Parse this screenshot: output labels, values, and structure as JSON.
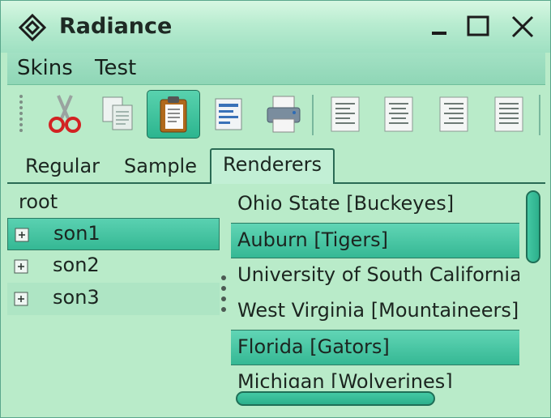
{
  "window": {
    "title": "Radiance"
  },
  "menu": {
    "items": [
      "Skins",
      "Test"
    ]
  },
  "toolbar": {
    "tools": [
      {
        "icon": "cut-icon"
      },
      {
        "icon": "copy-icon"
      },
      {
        "icon": "paste-icon",
        "selected": true
      },
      {
        "icon": "find-icon"
      },
      {
        "icon": "print-icon"
      },
      {
        "icon": "align-left-icon"
      },
      {
        "icon": "align-center-icon"
      },
      {
        "icon": "align-right-icon"
      },
      {
        "icon": "align-justify-icon"
      }
    ]
  },
  "tabs": [
    "Regular",
    "Sample",
    "Renderers"
  ],
  "tree": {
    "root": "root",
    "children": [
      "son1",
      "son2",
      "son3"
    ],
    "selected": "son1"
  },
  "list": {
    "items": [
      "Ohio State [Buckeyes]",
      "Auburn [Tigers]",
      "University of South California |",
      "West Virginia [Mountaineers]",
      "Florida [Gators]",
      "Michigan [Wolverines]"
    ]
  },
  "colors": {
    "accent": "#35b894",
    "window_bg": "#b9ebc9",
    "title_text": "#1e2a24"
  }
}
